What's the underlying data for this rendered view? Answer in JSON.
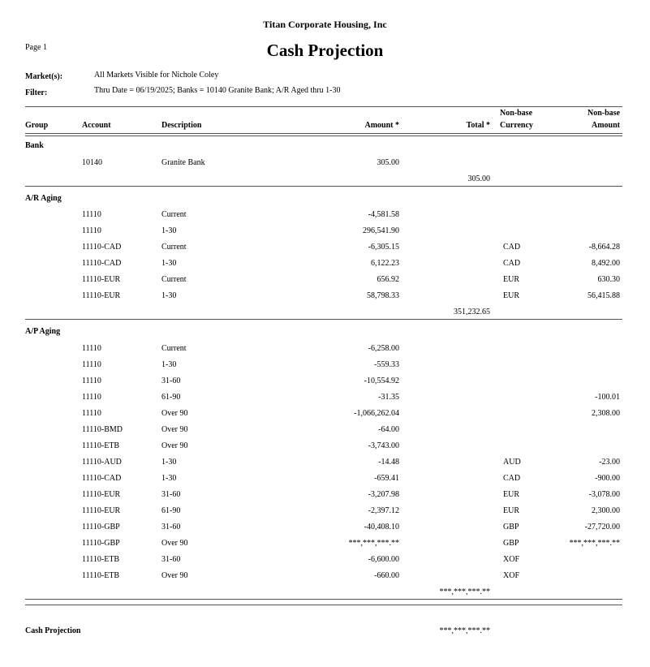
{
  "header": {
    "company": "Titan Corporate Housing, Inc",
    "title": "Cash Projection",
    "page": "Page 1",
    "markets_label": "Market(s):",
    "markets_value": "All Markets Visible for Nichole Coley",
    "filter_label": "Filter:",
    "filter_value": "Thru Date = 06/19/2025; Banks = 10140 Granite Bank; A/R Aged thru 1-30"
  },
  "columns": {
    "group": "Group",
    "account": "Account",
    "description": "Description",
    "amount": "Amount *",
    "total": "Total *",
    "currency_top": "Non-base",
    "currency": "Currency",
    "nonbase_top": "Non-base",
    "nonbase": "Amount"
  },
  "groups": [
    {
      "name": "Bank",
      "rows": [
        {
          "account": "10140",
          "description": "Granite Bank",
          "amount": "305.00",
          "currency": "",
          "nonbase": ""
        }
      ],
      "total": "305.00"
    },
    {
      "name": "A/R Aging",
      "rows": [
        {
          "account": "11110",
          "description": "Current",
          "amount": "-4,581.58",
          "currency": "",
          "nonbase": ""
        },
        {
          "account": "11110",
          "description": "1-30",
          "amount": "296,541.90",
          "currency": "",
          "nonbase": ""
        },
        {
          "account": "11110-CAD",
          "description": "Current",
          "amount": "-6,305.15",
          "currency": "CAD",
          "nonbase": "-8,664.28"
        },
        {
          "account": "11110-CAD",
          "description": "1-30",
          "amount": "6,122.23",
          "currency": "CAD",
          "nonbase": "8,492.00"
        },
        {
          "account": "11110-EUR",
          "description": "Current",
          "amount": "656.92",
          "currency": "EUR",
          "nonbase": "630.30"
        },
        {
          "account": "11110-EUR",
          "description": "1-30",
          "amount": "58,798.33",
          "currency": "EUR",
          "nonbase": "56,415.88"
        }
      ],
      "total": "351,232.65"
    },
    {
      "name": "A/P Aging",
      "rows": [
        {
          "account": "11110",
          "description": "Current",
          "amount": "-6,258.00",
          "currency": "",
          "nonbase": ""
        },
        {
          "account": "11110",
          "description": "1-30",
          "amount": "-559.33",
          "currency": "",
          "nonbase": ""
        },
        {
          "account": "11110",
          "description": "31-60",
          "amount": "-10,554.92",
          "currency": "",
          "nonbase": ""
        },
        {
          "account": "11110",
          "description": "61-90",
          "amount": "-31.35",
          "currency": "",
          "nonbase": "-100.01"
        },
        {
          "account": "11110",
          "description": "Over 90",
          "amount": "-1,066,262.04",
          "currency": "",
          "nonbase": "2,308.00"
        },
        {
          "account": "11110-BMD",
          "description": "Over 90",
          "amount": "-64.00",
          "currency": "",
          "nonbase": ""
        },
        {
          "account": "11110-ETB",
          "description": "Over 90",
          "amount": "-3,743.00",
          "currency": "",
          "nonbase": ""
        },
        {
          "account": "11110-AUD",
          "description": "1-30",
          "amount": "-14.48",
          "currency": "AUD",
          "nonbase": "-23.00"
        },
        {
          "account": "11110-CAD",
          "description": "1-30",
          "amount": "-659.41",
          "currency": "CAD",
          "nonbase": "-900.00"
        },
        {
          "account": "11110-EUR",
          "description": "31-60",
          "amount": "-3,207.98",
          "currency": "EUR",
          "nonbase": "-3,078.00"
        },
        {
          "account": "11110-EUR",
          "description": "61-90",
          "amount": "-2,397.12",
          "currency": "EUR",
          "nonbase": "2,300.00"
        },
        {
          "account": "11110-GBP",
          "description": "31-60",
          "amount": "-40,408.10",
          "currency": "GBP",
          "nonbase": "-27,720.00"
        },
        {
          "account": "11110-GBP",
          "description": "Over 90",
          "amount": "***,***,***.**",
          "currency": "GBP",
          "nonbase": "***,***,***.**"
        },
        {
          "account": "11110-ETB",
          "description": "31-60",
          "amount": "-6,600.00",
          "currency": "XOF",
          "nonbase": ""
        },
        {
          "account": "11110-ETB",
          "description": "Over 90",
          "amount": "-660.00",
          "currency": "XOF",
          "nonbase": ""
        }
      ],
      "total": "***,***,***.**"
    }
  ],
  "grand_total": {
    "label": "Cash Projection",
    "value": "***,***,***.**"
  }
}
